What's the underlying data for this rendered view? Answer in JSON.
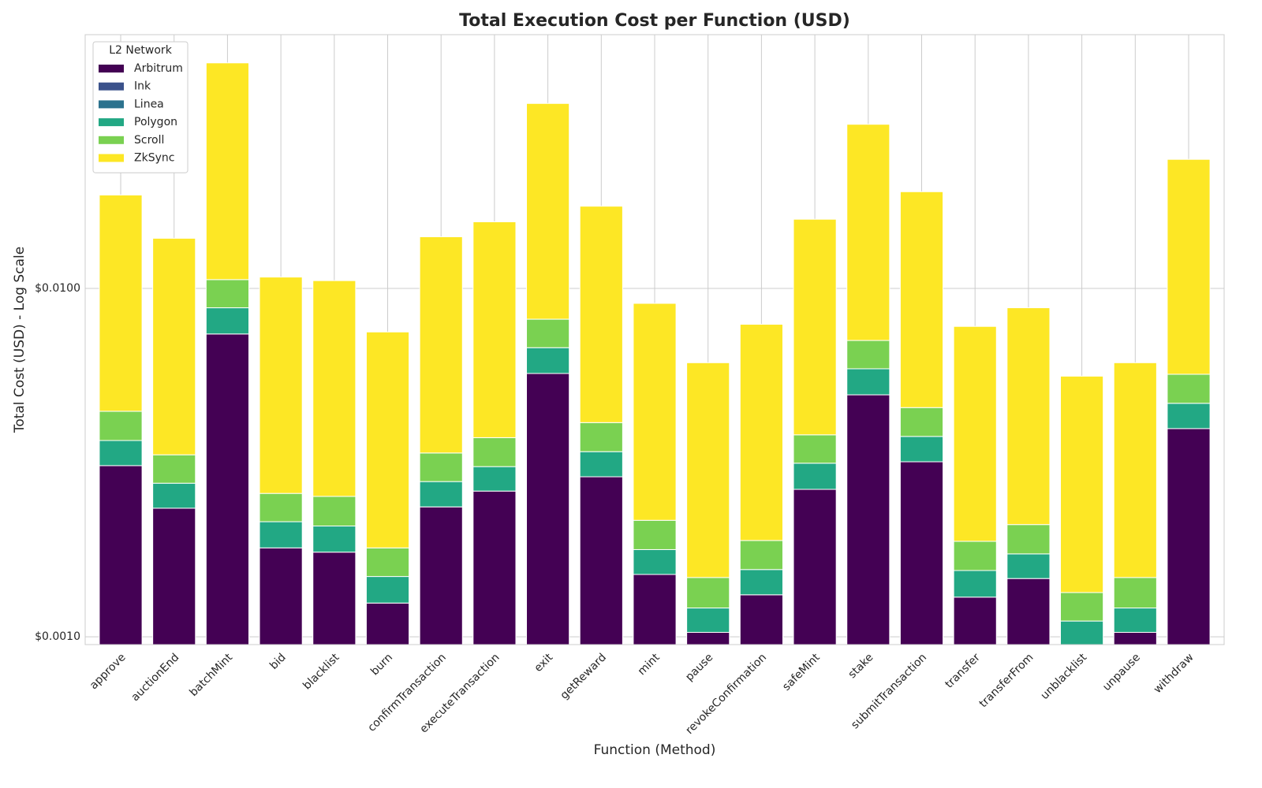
{
  "chart_data": {
    "type": "stacked_bar",
    "title": "Total Execution Cost per Function (USD)",
    "x_label": "Function (Method)",
    "y_label": "Total Cost (USD) - Log Scale",
    "log_scale": true,
    "grid": true,
    "legend_title": "L2 Network",
    "legend_position": "upper left",
    "categories": [
      "approve",
      "auctionEnd",
      "batchMint",
      "bid",
      "blacklist",
      "burn",
      "confirmTransaction",
      "executeTransaction",
      "exit",
      "getReward",
      "mint",
      "pause",
      "revokeConfirmation",
      "safeMint",
      "stake",
      "submitTransaction",
      "transfer",
      "transferFrom",
      "unblacklist",
      "unpause",
      "withdraw"
    ],
    "series": [
      {
        "name": "Arbitrum",
        "color": "#440154",
        "values": [
          0.0031,
          0.00234,
          0.0074,
          0.0018,
          0.00175,
          0.00125,
          0.00236,
          0.00262,
          0.0057,
          0.00288,
          0.00151,
          0.00103,
          0.00132,
          0.00265,
          0.00495,
          0.00318,
          0.0013,
          0.00147,
          0.00094,
          0.00103,
          0.00396
        ]
      },
      {
        "name": "Ink",
        "color": "#3b528b",
        "values": [
          0,
          0,
          0,
          0,
          0,
          0,
          0,
          0,
          0,
          0,
          0,
          0,
          0,
          0,
          0,
          0,
          0,
          0,
          0,
          0,
          0
        ]
      },
      {
        "name": "Linea",
        "color": "#2c728e",
        "values": [
          0,
          0,
          0,
          0,
          0,
          0,
          0,
          0,
          0,
          0,
          0,
          0,
          0,
          0,
          0,
          0,
          0,
          0,
          0,
          0,
          0
        ]
      },
      {
        "name": "Polygon",
        "color": "#22a884",
        "values": [
          0.00056,
          0.00042,
          0.0014,
          0.00034,
          0.00033,
          0.00024,
          0.00043,
          0.00046,
          0.00106,
          0.00052,
          0.00027,
          0.00018,
          0.00024,
          0.0005,
          0.00093,
          0.00058,
          0.00025,
          0.00026,
          0.00017,
          0.00018,
          0.00072
        ]
      },
      {
        "name": "Scroll",
        "color": "#7ad151",
        "values": [
          0.00078,
          0.00057,
          0.0018,
          0.00044,
          0.00045,
          0.00031,
          0.00058,
          0.00065,
          0.0014,
          0.00072,
          0.00038,
          0.00027,
          0.00033,
          0.00065,
          0.00121,
          0.00079,
          0.00033,
          0.00037,
          0.00023,
          0.00027,
          0.00099
        ]
      },
      {
        "name": "ZkSync",
        "color": "#fde725",
        "values": [
          0.0141,
          0.0106,
          0.0338,
          0.0082,
          0.008,
          0.0057,
          0.0107,
          0.0118,
          0.0258,
          0.0131,
          0.0069,
          0.00464,
          0.006,
          0.012,
          0.0225,
          0.0144,
          0.0059,
          0.0067,
          0.00426,
          0.00464,
          0.0178
        ]
      }
    ],
    "ylim": [
      0.00095,
      0.0535
    ],
    "yticks": [
      {
        "value": 0.001,
        "label": "$0.0010"
      },
      {
        "value": 0.01,
        "label": "$0.0100"
      }
    ]
  }
}
